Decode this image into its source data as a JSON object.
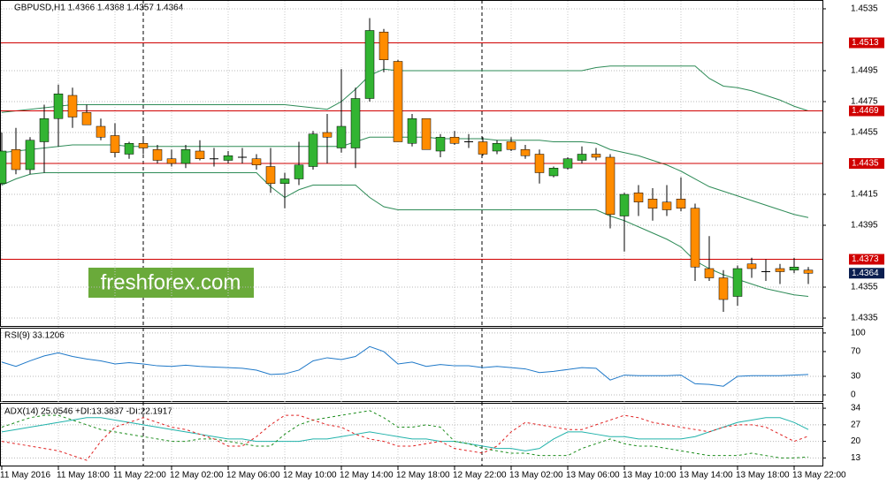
{
  "chart_data": [
    {
      "type": "candlestick",
      "title": "GBPUSD,H1  1.4366 1.4368 1.4357 1.4364",
      "watermark": "freshforex.com",
      "categories": [
        "11 May 2016",
        null,
        null,
        null,
        "11 May 18:00",
        null,
        null,
        null,
        "11 May 22:00",
        null,
        null,
        null,
        "12 May 02:00",
        null,
        null,
        null,
        "12 May 06:00",
        null,
        null,
        null,
        "12 May 10:00",
        null,
        null,
        null,
        "12 May 14:00",
        null,
        null,
        null,
        "12 May 18:00",
        null,
        null,
        null,
        "12 May 22:00",
        null,
        null,
        null,
        "13 May 02:00",
        null,
        null,
        null,
        "13 May 06:00",
        null,
        null,
        null,
        "13 May 10:00",
        null,
        null,
        null,
        "13 May 14:00",
        null,
        null,
        null,
        "13 May 18:00",
        null,
        null,
        null,
        "13 May 22:00",
        null
      ],
      "open": [
        1.4422,
        1.4444,
        1.4431,
        1.4449,
        1.4464,
        1.4479,
        1.4468,
        1.4459,
        1.4453,
        1.4441,
        1.4448,
        1.4444,
        1.4438,
        1.4435,
        1.4443,
        1.4438,
        1.4437,
        1.4439,
        1.4438,
        1.4433,
        1.4422,
        1.4425,
        1.4433,
        1.4455,
        1.4445,
        1.4445,
        1.4477,
        1.452,
        1.4501,
        1.4448,
        1.4464,
        1.4443,
        1.4452,
        1.4449,
        1.4449,
        1.4443,
        1.4449,
        1.4444,
        1.4441,
        1.4427,
        1.4432,
        1.4437,
        1.4441,
        1.4439,
        1.4401,
        1.4416,
        1.4412,
        1.441,
        1.4412,
        1.4406,
        1.4367,
        1.4361,
        1.4349,
        1.437,
        1.4365,
        1.4367,
        1.4366,
        1.4366
      ],
      "high": [
        1.4455,
        1.4458,
        1.4452,
        1.4473,
        1.4486,
        1.4484,
        1.4473,
        1.4464,
        1.4461,
        1.4449,
        1.4452,
        1.4447,
        1.4444,
        1.4447,
        1.445,
        1.4445,
        1.4443,
        1.4445,
        1.4441,
        1.4445,
        1.4429,
        1.4449,
        1.4456,
        1.4467,
        1.4496,
        1.4484,
        1.4529,
        1.4522,
        1.4502,
        1.4467,
        1.4464,
        1.4454,
        1.4456,
        1.4454,
        1.4452,
        1.445,
        1.4452,
        1.4447,
        1.4444,
        1.4433,
        1.4439,
        1.4446,
        1.4445,
        1.4441,
        1.4416,
        1.4421,
        1.4419,
        1.4421,
        1.4426,
        1.4409,
        1.4388,
        1.4366,
        1.4369,
        1.4374,
        1.4373,
        1.437,
        1.4374,
        1.4368
      ],
      "low": [
        1.4421,
        1.4428,
        1.4428,
        1.4429,
        1.4446,
        1.4458,
        1.446,
        1.445,
        1.4439,
        1.4438,
        1.4441,
        1.4435,
        1.4433,
        1.4432,
        1.4437,
        1.4433,
        1.4435,
        1.4435,
        1.4431,
        1.4416,
        1.4406,
        1.4421,
        1.4431,
        1.4435,
        1.4442,
        1.4432,
        1.4475,
        1.4494,
        1.4449,
        1.4446,
        1.4444,
        1.4439,
        1.4447,
        1.4445,
        1.444,
        1.4441,
        1.4443,
        1.4438,
        1.4422,
        1.4426,
        1.4431,
        1.4435,
        1.4437,
        1.4393,
        1.4378,
        1.4401,
        1.4398,
        1.4401,
        1.4404,
        1.4359,
        1.4359,
        1.4339,
        1.4343,
        1.4361,
        1.4359,
        1.4357,
        1.4364,
        1.4357
      ],
      "close": [
        1.4443,
        1.4431,
        1.445,
        1.4464,
        1.448,
        1.4465,
        1.446,
        1.4452,
        1.4442,
        1.4448,
        1.4445,
        1.4437,
        1.4435,
        1.4444,
        1.4438,
        1.4438,
        1.444,
        1.4439,
        1.4434,
        1.4422,
        1.4425,
        1.4434,
        1.4454,
        1.4452,
        1.4459,
        1.4477,
        1.4521,
        1.4502,
        1.4449,
        1.4464,
        1.4444,
        1.4452,
        1.4448,
        1.4449,
        1.4441,
        1.4448,
        1.4444,
        1.444,
        1.4429,
        1.4432,
        1.4438,
        1.4441,
        1.4439,
        1.4402,
        1.4415,
        1.441,
        1.4406,
        1.4405,
        1.4406,
        1.4368,
        1.4361,
        1.4347,
        1.4367,
        1.4367,
        1.4365,
        1.4365,
        1.4368,
        1.4364
      ],
      "up_color": "#32b432",
      "down_color": "#ff8c00",
      "doji_color": "#000000",
      "bands": [
        {
          "color": "#2e8b57",
          "values": [
            1.4468,
            1.4469,
            1.447,
            1.4471,
            1.4472,
            1.4473,
            1.4473,
            1.4473,
            1.4473,
            1.4473,
            1.4473,
            1.4473,
            1.4473,
            1.4473,
            1.4473,
            1.4473,
            1.4473,
            1.4473,
            1.4473,
            1.4473,
            1.4473,
            1.4472,
            1.4471,
            1.447,
            1.4475,
            1.4483,
            1.4492,
            1.4496,
            1.4495,
            1.4495,
            1.4495,
            1.4495,
            1.4495,
            1.4495,
            1.4495,
            1.4495,
            1.4495,
            1.4495,
            1.4495,
            1.4495,
            1.4495,
            1.4495,
            1.4497,
            1.4498,
            1.4498,
            1.4498,
            1.4498,
            1.4498,
            1.4498,
            1.4498,
            1.449,
            1.4485,
            1.4484,
            1.4482,
            1.4479,
            1.4476,
            1.4472,
            1.4469
          ]
        },
        {
          "color": "#2e8b57",
          "values": [
            1.4442,
            1.4443,
            1.4444,
            1.4445,
            1.4446,
            1.4447,
            1.4447,
            1.4447,
            1.4447,
            1.4446,
            1.4446,
            1.4446,
            1.4446,
            1.4446,
            1.4446,
            1.4446,
            1.4446,
            1.4446,
            1.4446,
            1.4446,
            1.4446,
            1.4446,
            1.4446,
            1.4446,
            1.4446,
            1.4449,
            1.4452,
            1.4452,
            1.4452,
            1.4452,
            1.4452,
            1.4451,
            1.4451,
            1.4451,
            1.4451,
            1.445,
            1.445,
            1.445,
            1.445,
            1.4449,
            1.4449,
            1.4449,
            1.4448,
            1.4444,
            1.4442,
            1.444,
            1.4437,
            1.4434,
            1.443,
            1.4425,
            1.442,
            1.4417,
            1.4414,
            1.4411,
            1.4408,
            1.4405,
            1.4402,
            1.44
          ]
        },
        {
          "color": "#2e8b57",
          "values": [
            1.4421,
            1.4425,
            1.4428,
            1.4429,
            1.4429,
            1.4429,
            1.4429,
            1.4429,
            1.4429,
            1.4429,
            1.4429,
            1.4429,
            1.4429,
            1.4429,
            1.4429,
            1.4429,
            1.4429,
            1.4429,
            1.4429,
            1.442,
            1.4413,
            1.4418,
            1.4421,
            1.4421,
            1.4421,
            1.4421,
            1.4413,
            1.4407,
            1.4405,
            1.4405,
            1.4405,
            1.4405,
            1.4405,
            1.4405,
            1.4405,
            1.4405,
            1.4405,
            1.4405,
            1.4405,
            1.4405,
            1.4405,
            1.4405,
            1.4405,
            1.4401,
            1.4398,
            1.4394,
            1.439,
            1.4386,
            1.4381,
            1.4372,
            1.4367,
            1.4363,
            1.436,
            1.4357,
            1.4354,
            1.4352,
            1.435,
            1.4349
          ]
        }
      ],
      "levels": [
        {
          "value": 1.4513,
          "color": "#d00000"
        },
        {
          "value": 1.4469,
          "color": "#d00000"
        },
        {
          "value": 1.4435,
          "color": "#d00000"
        },
        {
          "value": 1.4373,
          "color": "#d00000"
        }
      ],
      "last_price": {
        "value": 1.4364,
        "color": "#0a1e50"
      },
      "ylim": [
        1.43293,
        1.45407
      ],
      "yticks": [
        1.4535,
        1.4495,
        1.4475,
        1.4455,
        1.4415,
        1.4395,
        1.4355,
        1.4335
      ],
      "grid": true
    },
    {
      "type": "line",
      "title": "RSI(9) 33.1206",
      "series": [
        {
          "color": "#1e78c8",
          "values": [
            53,
            46,
            55,
            63,
            68,
            62,
            58,
            55,
            50,
            52,
            50,
            47,
            46,
            48,
            46,
            45,
            44,
            43,
            40,
            33,
            34,
            40,
            55,
            60,
            57,
            62,
            78,
            70,
            50,
            53,
            46,
            49,
            47,
            47,
            44,
            46,
            44,
            42,
            36,
            38,
            41,
            44,
            43,
            24,
            32,
            31,
            31,
            31,
            32,
            18,
            17,
            14,
            30,
            31,
            31,
            31,
            32,
            33
          ]
        }
      ],
      "ylim": [
        -11.4,
        107
      ],
      "yticks": [
        100,
        70,
        30,
        0
      ],
      "grid": true
    },
    {
      "type": "line",
      "title": "ADX(14) 25.0546 +DI:13.3837 -DI:22.1917",
      "series": [
        {
          "color": "#20b2aa",
          "dash": false,
          "values": [
            24,
            25,
            26,
            27,
            28,
            29,
            30,
            30,
            29,
            28,
            27,
            26,
            25,
            24,
            23,
            22,
            21,
            21,
            20,
            20,
            20,
            20,
            21,
            21,
            22,
            23,
            24,
            23,
            22,
            21,
            21,
            20,
            20,
            19,
            18,
            17,
            17,
            16,
            17,
            21,
            24,
            24,
            23,
            22,
            22,
            21,
            21,
            21,
            21,
            22,
            24,
            26,
            28,
            29,
            30,
            30,
            28,
            25
          ]
        },
        {
          "color": "#1a8c1a",
          "dash": true,
          "values": [
            26,
            28,
            30,
            31,
            31,
            29,
            27,
            25,
            24,
            23,
            22,
            21,
            20,
            20,
            21,
            21,
            20,
            19,
            18,
            18,
            23,
            27,
            29,
            30,
            31,
            32,
            33,
            30,
            26,
            26,
            27,
            26,
            20,
            19,
            17,
            16,
            15,
            15,
            14,
            14,
            14,
            17,
            19,
            21,
            19,
            18,
            18,
            17,
            16,
            15,
            14,
            14,
            14,
            15,
            14,
            13,
            13,
            13.4
          ]
        },
        {
          "color": "#e02020",
          "dash": true,
          "values": [
            20,
            19,
            18,
            17,
            16,
            14,
            12,
            20,
            26,
            28,
            30,
            28,
            26,
            25,
            23,
            21,
            18,
            18,
            22,
            27,
            31,
            31,
            29,
            27,
            26,
            23,
            21,
            20,
            18,
            18,
            19,
            20,
            17,
            16,
            15,
            18,
            24,
            28,
            27,
            26,
            25,
            25,
            27,
            29,
            31,
            30,
            28,
            27,
            26,
            25,
            24,
            26,
            27,
            27,
            26,
            23,
            20,
            22.2
          ]
        }
      ],
      "ylim": [
        9.4,
        35.9
      ],
      "yticks": [
        34,
        27,
        20,
        13
      ],
      "grid": true
    }
  ]
}
